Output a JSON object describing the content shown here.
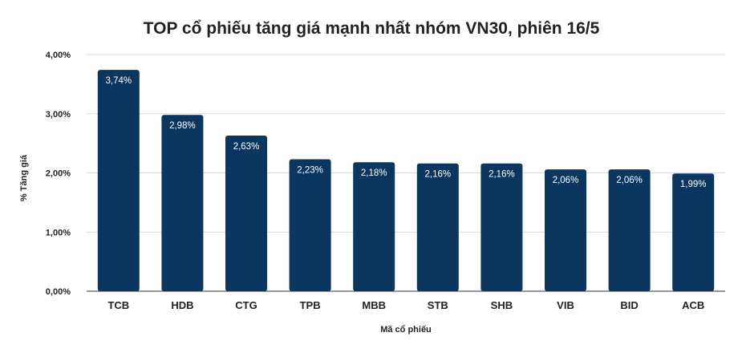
{
  "chart_data": {
    "type": "bar",
    "title": "TOP cổ phiếu tăng giá mạnh nhất nhóm VN30, phiên 16/5",
    "xlabel": "Mã cổ phiếu",
    "ylabel": "% Tăng giá",
    "categories": [
      "TCB",
      "HDB",
      "CTG",
      "TPB",
      "MBB",
      "STB",
      "SHB",
      "VIB",
      "BID",
      "ACB"
    ],
    "values": [
      3.74,
      2.98,
      2.63,
      2.23,
      2.18,
      2.16,
      2.16,
      2.06,
      2.06,
      1.99
    ],
    "value_labels": [
      "3,74%",
      "2,98%",
      "2,63%",
      "2,23%",
      "2,18%",
      "2,16%",
      "2,16%",
      "2,06%",
      "2,06%",
      "1,99%"
    ],
    "ylim": [
      0,
      4
    ],
    "yticks": [
      0,
      1,
      2,
      3,
      4
    ],
    "ytick_labels": [
      "0,00%",
      "1,00%",
      "2,00%",
      "3,00%",
      "4,00%"
    ],
    "grid": true,
    "legend": "none",
    "bar_color": "#0b3660"
  }
}
